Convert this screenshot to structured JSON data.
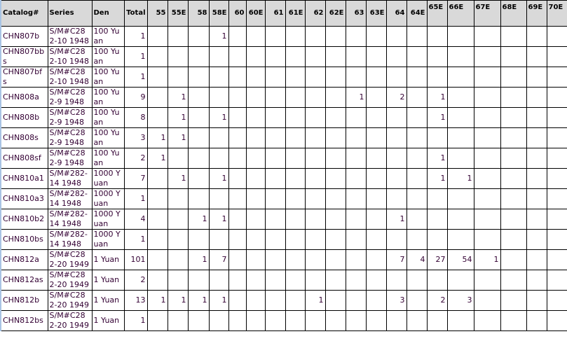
{
  "table": {
    "headers": [
      "Catalog#",
      "Series",
      "Den",
      "Total",
      "55",
      "55E",
      "58",
      "58E",
      "60",
      "60E",
      "61",
      "61E",
      "62",
      "62E",
      "63",
      "63E",
      "64",
      "64E",
      "65E",
      "66E",
      "67E",
      "68E",
      "69E",
      "70E"
    ],
    "rows": [
      [
        "CHN807b",
        "S/M#C282-10 1948",
        "100 Yuan",
        "1",
        "",
        "",
        "",
        "1",
        "",
        "",
        "",
        "",
        "",
        "",
        "",
        "",
        "",
        "",
        "",
        "",
        "",
        "",
        "",
        ""
      ],
      [
        "CHN807bbs",
        "S/M#C282-10 1948",
        "100 Yuan",
        "1",
        "",
        "",
        "",
        "",
        "",
        "",
        "",
        "",
        "",
        "",
        "",
        "",
        "",
        "",
        "",
        "",
        "",
        "",
        "",
        ""
      ],
      [
        "CHN807bfs",
        "S/M#C282-10 1948",
        "100 Yuan",
        "1",
        "",
        "",
        "",
        "",
        "",
        "",
        "",
        "",
        "",
        "",
        "",
        "",
        "",
        "",
        "",
        "",
        "",
        "",
        "",
        ""
      ],
      [
        "CHN808a",
        "S/M#C282-9 1948",
        "100 Yuan",
        "9",
        "",
        "1",
        "",
        "",
        "",
        "",
        "",
        "",
        "",
        "",
        "1",
        "",
        "2",
        "",
        "1",
        "",
        "",
        "",
        "",
        ""
      ],
      [
        "CHN808b",
        "S/M#C282-9 1948",
        "100 Yuan",
        "8",
        "",
        "1",
        "",
        "1",
        "",
        "",
        "",
        "",
        "",
        "",
        "",
        "",
        "",
        "",
        "1",
        "",
        "",
        "",
        "",
        ""
      ],
      [
        "CHN808s",
        "S/M#C282-9 1948",
        "100 Yuan",
        "3",
        "1",
        "1",
        "",
        "",
        "",
        "",
        "",
        "",
        "",
        "",
        "",
        "",
        "",
        "",
        "",
        "",
        "",
        "",
        "",
        ""
      ],
      [
        "CHN808sf",
        "S/M#C282-9 1948",
        "100 Yuan",
        "2",
        "1",
        "",
        "",
        "",
        "",
        "",
        "",
        "",
        "",
        "",
        "",
        "",
        "",
        "",
        "1",
        "",
        "",
        "",
        "",
        ""
      ],
      [
        "CHN810a1",
        "S/M#282-14 1948",
        "1000 Yuan",
        "7",
        "",
        "1",
        "",
        "1",
        "",
        "",
        "",
        "",
        "",
        "",
        "",
        "",
        "",
        "",
        "1",
        "1",
        "",
        "",
        "",
        ""
      ],
      [
        "CHN810a3",
        "S/M#282-14 1948",
        "1000 Yuan",
        "1",
        "",
        "",
        "",
        "",
        "",
        "",
        "",
        "",
        "",
        "",
        "",
        "",
        "",
        "",
        "",
        "",
        "",
        "",
        "",
        ""
      ],
      [
        "CHN810b2",
        "S/M#282-14 1948",
        "1000 Yuan",
        "4",
        "",
        "",
        "1",
        "1",
        "",
        "",
        "",
        "",
        "",
        "",
        "",
        "",
        "1",
        "",
        "",
        "",
        "",
        "",
        "",
        ""
      ],
      [
        "CHN810bs",
        "S/M#282-14 1948",
        "1000 Yuan",
        "1",
        "",
        "",
        "",
        "",
        "",
        "",
        "",
        "",
        "",
        "",
        "",
        "",
        "",
        "",
        "",
        "",
        "",
        "",
        "",
        ""
      ],
      [
        "CHN812a",
        "S/M#C282-20 1949",
        "1 Yuan",
        "101",
        "",
        "",
        "1",
        "7",
        "",
        "",
        "",
        "",
        "",
        "",
        "",
        "",
        "7",
        "4",
        "27",
        "54",
        "1",
        "",
        "",
        ""
      ],
      [
        "CHN812as",
        "S/M#C282-20 1949",
        "1 Yuan",
        "2",
        "",
        "",
        "",
        "",
        "",
        "",
        "",
        "",
        "",
        "",
        "",
        "",
        "",
        "",
        "",
        "",
        "",
        "",
        "",
        ""
      ],
      [
        "CHN812b",
        "S/M#C282-20 1949",
        "1 Yuan",
        "13",
        "1",
        "1",
        "1",
        "1",
        "",
        "",
        "",
        "",
        "1",
        "",
        "",
        "",
        "3",
        "",
        "2",
        "3",
        "",
        "",
        "",
        ""
      ],
      [
        "CHN812bs",
        "S/M#C282-20 1949",
        "1 Yuan",
        "1",
        "",
        "",
        "",
        "",
        "",
        "",
        "",
        "",
        "",
        "",
        "",
        "",
        "",
        "",
        "",
        "",
        "",
        "",
        "",
        ""
      ]
    ]
  },
  "colors": {
    "header_bg": "#d9d9d9",
    "text": "#330033",
    "border": "#000000"
  }
}
